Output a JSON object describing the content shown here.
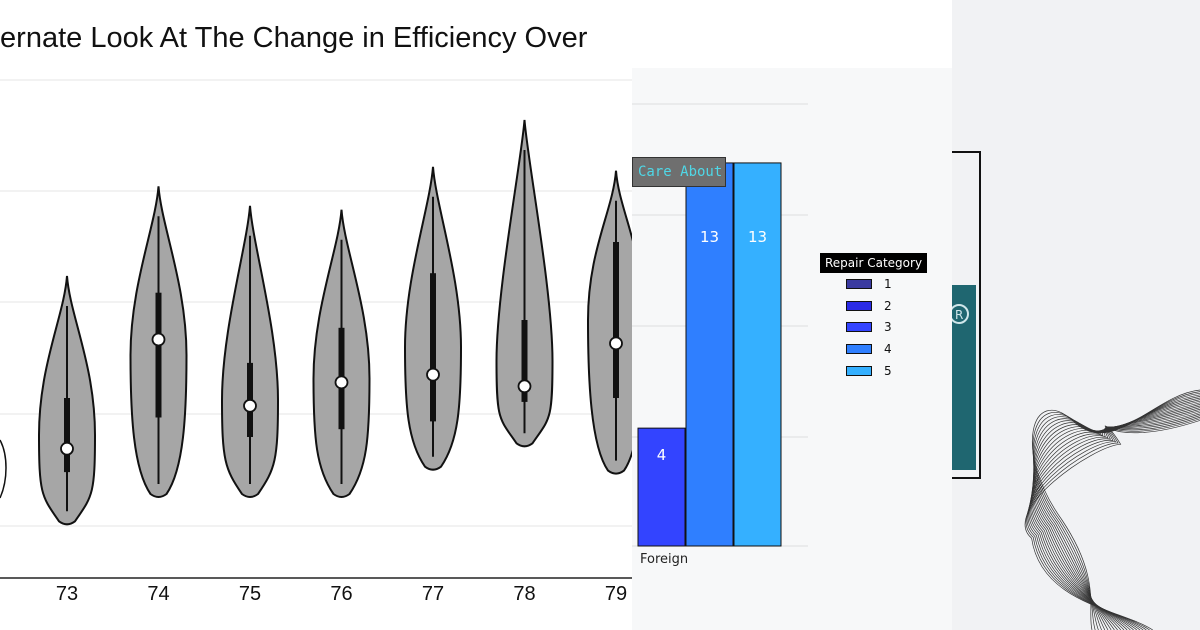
{
  "violin_chart": {
    "title": "ternate Look At The Change in Efficiency Over",
    "chart_data": {
      "type": "violin",
      "categories": [
        "73",
        "74",
        "75",
        "76",
        "77",
        "78",
        "79"
      ],
      "series": [
        {
          "category": "73",
          "median": 0.17,
          "q1": 0.11,
          "q3": 0.3,
          "min": 0.03,
          "max": 0.6
        },
        {
          "category": "74",
          "median": 0.45,
          "q1": 0.25,
          "q3": 0.57,
          "min": 0.1,
          "max": 0.83
        },
        {
          "category": "75",
          "median": 0.28,
          "q1": 0.2,
          "q3": 0.39,
          "min": 0.1,
          "max": 0.78
        },
        {
          "category": "76",
          "median": 0.34,
          "q1": 0.22,
          "q3": 0.48,
          "min": 0.1,
          "max": 0.77
        },
        {
          "category": "77",
          "median": 0.36,
          "q1": 0.24,
          "q3": 0.62,
          "min": 0.17,
          "max": 0.88
        },
        {
          "category": "78",
          "median": 0.33,
          "q1": 0.29,
          "q3": 0.5,
          "min": 0.23,
          "max": 1.0
        },
        {
          "category": "79",
          "median": 0.44,
          "q1": 0.3,
          "q3": 0.7,
          "min": 0.16,
          "max": 0.87
        }
      ],
      "grid": true
    }
  },
  "bar_chart": {
    "button_label": "Care About",
    "legend_title": "Repair Category",
    "legend": [
      {
        "label": "1",
        "color": "#3a3aa0"
      },
      {
        "label": "2",
        "color": "#2b2be6"
      },
      {
        "label": "3",
        "color": "#3344ff"
      },
      {
        "label": "4",
        "color": "#2f7fff"
      },
      {
        "label": "5",
        "color": "#35b0ff"
      }
    ],
    "chart_data": {
      "type": "bar",
      "categories": [
        "Foreign"
      ],
      "series": [
        {
          "name": "3",
          "values": [
            4
          ]
        },
        {
          "name": "4",
          "values": [
            13
          ]
        },
        {
          "name": "5",
          "values": [
            13
          ]
        }
      ],
      "data_labels": [
        "4",
        "13",
        "13"
      ],
      "ylim": [
        0,
        15
      ],
      "grid": true
    }
  },
  "colors": {
    "violin_fill": "#a6a6a6",
    "accent_cyan": "#4fd7e6",
    "teal_card": "#1f6670"
  },
  "icons": {
    "registered": "registered-icon"
  }
}
